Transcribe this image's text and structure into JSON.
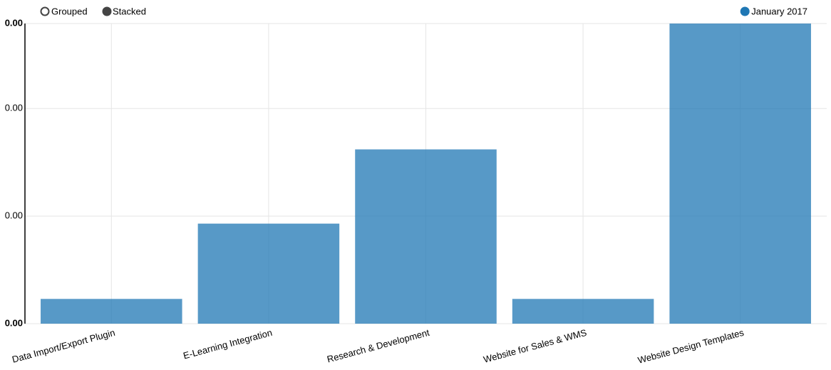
{
  "chart_data": {
    "type": "bar",
    "controls": [
      "Grouped",
      "Stacked"
    ],
    "categories": [
      "Data Import/Export Plugin",
      "E-Learning Integration",
      "Research & Development",
      "Website for Sales & WMS",
      "Website Design Templates"
    ],
    "series": [
      {
        "name": "January 2017",
        "color": "#1f77b4",
        "values": [
          0.00023,
          0.00093,
          0.00162,
          0.00023,
          0.00279
        ]
      }
    ],
    "ylim": [
      0,
      0.00279
    ],
    "yticks": [
      {
        "value": 0,
        "label": "0.00"
      },
      {
        "value": 0.001,
        "label": "0.00"
      },
      {
        "value": 0.002,
        "label": "0.00"
      },
      {
        "value": 0.00279,
        "label": "0.00"
      }
    ],
    "grid": true
  }
}
